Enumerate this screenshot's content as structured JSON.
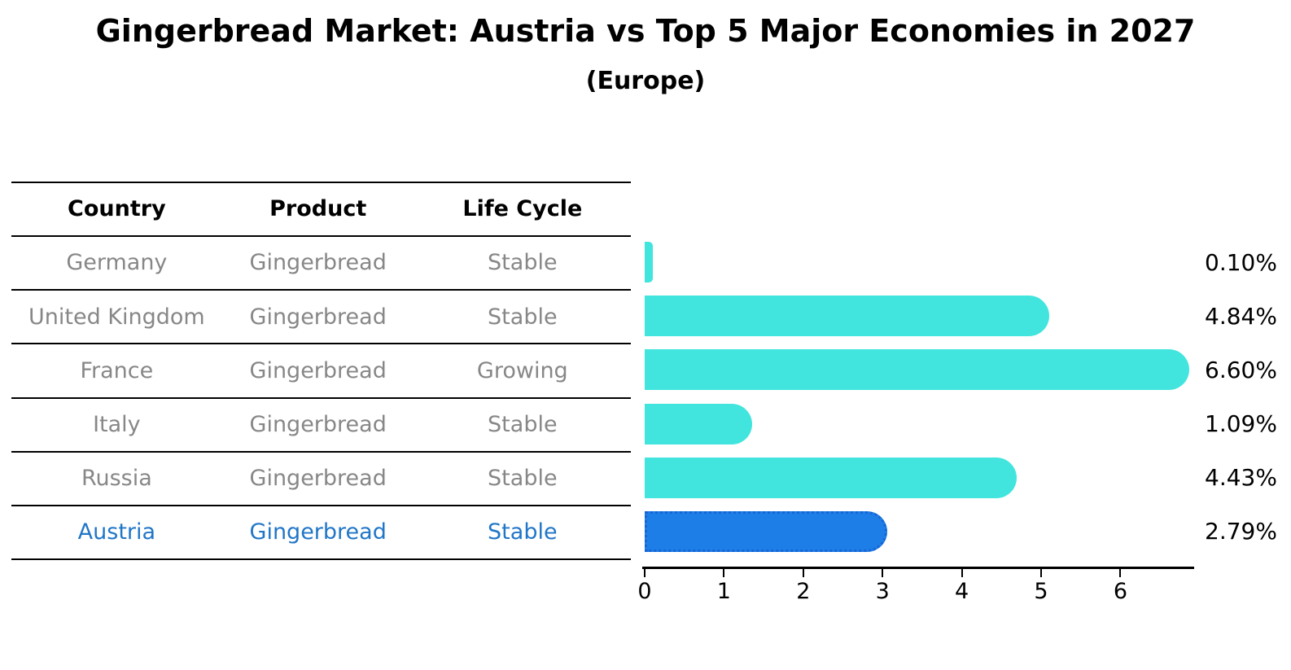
{
  "chart_data": {
    "type": "bar",
    "orientation": "horizontal",
    "title": "Gingerbread Market: Austria vs Top 5 Major Economies in 2027",
    "subtitle": "(Europe)",
    "categories": [
      "Germany",
      "United Kingdom",
      "France",
      "Italy",
      "Russia",
      "Austria"
    ],
    "values": [
      0.1,
      4.84,
      6.6,
      1.09,
      4.43,
      2.79
    ],
    "value_labels": [
      "0.10%",
      "4.84%",
      "6.60%",
      "1.09%",
      "4.43%",
      "2.79%"
    ],
    "x_ticks": [
      0,
      1,
      2,
      3,
      4,
      5,
      6
    ],
    "xlim": [
      0,
      6.93
    ],
    "highlight_index": 5,
    "grid": false,
    "legend": "none"
  },
  "table": {
    "headers": [
      "Country",
      "Product",
      "Life Cycle"
    ],
    "rows": [
      {
        "country": "Germany",
        "product": "Gingerbread",
        "life_cycle": "Stable",
        "highlight": false
      },
      {
        "country": "United Kingdom",
        "product": "Gingerbread",
        "life_cycle": "Stable",
        "highlight": false
      },
      {
        "country": "France",
        "product": "Gingerbread",
        "life_cycle": "Growing",
        "highlight": false
      },
      {
        "country": "Italy",
        "product": "Gingerbread",
        "life_cycle": "Stable",
        "highlight": false
      },
      {
        "country": "Russia",
        "product": "Gingerbread",
        "life_cycle": "Stable",
        "highlight": false
      },
      {
        "country": "Austria",
        "product": "Gingerbread",
        "life_cycle": "Stable",
        "highlight": true
      }
    ]
  },
  "colors": {
    "bar": "#41e5dd",
    "highlight_bar": "#1e7ee8",
    "highlight_border": "#1565d4",
    "table_text": "#878787",
    "highlight_text": "#2176c7",
    "axis": "#000000"
  }
}
